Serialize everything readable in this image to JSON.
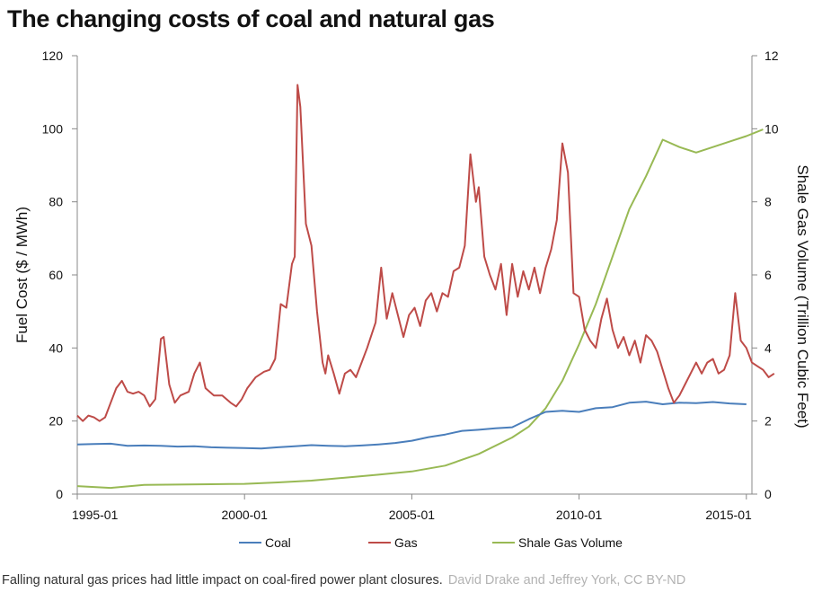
{
  "page": {
    "title": "The changing costs of coal and natural gas",
    "caption": "Falling natural gas prices had little impact on coal-fired power plant closures.",
    "credit": "David Drake and Jeffrey York, CC BY-ND"
  },
  "chart_data": {
    "type": "line",
    "title": "The changing costs of coal and natural gas",
    "x_range": [
      "1995-01",
      "2015-03"
    ],
    "x_tick_labels": [
      "1995-01",
      "2000-01",
      "2005-01",
      "2010-01",
      "2015-01"
    ],
    "y_left": {
      "label": "Fuel Cost ($ / MWh)",
      "range": [
        0,
        120
      ],
      "ticks": [
        0,
        20,
        40,
        60,
        80,
        100,
        120
      ]
    },
    "y_right": {
      "label": "Shale Gas Volume (Trillion Cubic Feet)",
      "range": [
        0,
        12
      ],
      "ticks": [
        0,
        2,
        4,
        6,
        8,
        10,
        12
      ]
    },
    "grid": false,
    "legend_position": "bottom",
    "colors": {
      "Coal": "#4a7ebb",
      "Gas": "#be4b48",
      "Shale Gas Volume": "#98b954"
    },
    "series": [
      {
        "name": "Coal",
        "axis": "left",
        "points": [
          [
            "1995-01",
            13.6
          ],
          [
            "1995-07",
            13.7
          ],
          [
            "1996-01",
            13.8
          ],
          [
            "1996-07",
            13.2
          ],
          [
            "1997-01",
            13.3
          ],
          [
            "1997-07",
            13.2
          ],
          [
            "1998-01",
            13.0
          ],
          [
            "1998-07",
            13.1
          ],
          [
            "1999-01",
            12.8
          ],
          [
            "1999-07",
            12.7
          ],
          [
            "2000-01",
            12.6
          ],
          [
            "2000-07",
            12.5
          ],
          [
            "2001-01",
            12.8
          ],
          [
            "2001-07",
            13.1
          ],
          [
            "2002-01",
            13.4
          ],
          [
            "2002-07",
            13.2
          ],
          [
            "2003-01",
            13.1
          ],
          [
            "2003-07",
            13.3
          ],
          [
            "2004-01",
            13.6
          ],
          [
            "2004-07",
            14.0
          ],
          [
            "2005-01",
            14.6
          ],
          [
            "2005-07",
            15.6
          ],
          [
            "2006-01",
            16.3
          ],
          [
            "2006-07",
            17.3
          ],
          [
            "2007-01",
            17.6
          ],
          [
            "2007-07",
            18.0
          ],
          [
            "2008-01",
            18.3
          ],
          [
            "2008-07",
            20.5
          ],
          [
            "2009-01",
            22.5
          ],
          [
            "2009-07",
            22.8
          ],
          [
            "2010-01",
            22.5
          ],
          [
            "2010-07",
            23.5
          ],
          [
            "2011-01",
            23.8
          ],
          [
            "2011-07",
            25.0
          ],
          [
            "2012-01",
            25.3
          ],
          [
            "2012-07",
            24.6
          ],
          [
            "2013-01",
            25.0
          ],
          [
            "2013-07",
            24.9
          ],
          [
            "2014-01",
            25.2
          ],
          [
            "2014-07",
            24.8
          ],
          [
            "2015-01",
            24.6
          ]
        ]
      },
      {
        "name": "Gas",
        "axis": "left",
        "points": [
          [
            "1995-01",
            21.5
          ],
          [
            "1995-03",
            20.0
          ],
          [
            "1995-05",
            21.5
          ],
          [
            "1995-07",
            21.0
          ],
          [
            "1995-09",
            20.0
          ],
          [
            "1995-11",
            21.0
          ],
          [
            "1996-01",
            25.0
          ],
          [
            "1996-03",
            29.0
          ],
          [
            "1996-05",
            31.0
          ],
          [
            "1996-07",
            28.0
          ],
          [
            "1996-09",
            27.5
          ],
          [
            "1996-11",
            28.0
          ],
          [
            "1997-01",
            27.0
          ],
          [
            "1997-03",
            24.0
          ],
          [
            "1997-05",
            26.0
          ],
          [
            "1997-07",
            42.5
          ],
          [
            "1997-08",
            43.0
          ],
          [
            "1997-10",
            30.0
          ],
          [
            "1997-12",
            25.0
          ],
          [
            "1998-02",
            27.0
          ],
          [
            "1998-05",
            28.0
          ],
          [
            "1998-07",
            33.0
          ],
          [
            "1998-09",
            36.0
          ],
          [
            "1998-11",
            29.0
          ],
          [
            "1999-02",
            27.0
          ],
          [
            "1999-05",
            27.0
          ],
          [
            "1999-08",
            25.0
          ],
          [
            "1999-10",
            24.0
          ],
          [
            "1999-12",
            26.0
          ],
          [
            "2000-02",
            29.0
          ],
          [
            "2000-05",
            32.0
          ],
          [
            "2000-08",
            33.5
          ],
          [
            "2000-10",
            34.0
          ],
          [
            "2000-12",
            37.0
          ],
          [
            "2001-02",
            52.0
          ],
          [
            "2001-04",
            51.0
          ],
          [
            "2001-06",
            63.0
          ],
          [
            "2001-07",
            65.0
          ],
          [
            "2001-08",
            112.0
          ],
          [
            "2001-09",
            106.0
          ],
          [
            "2001-11",
            74.0
          ],
          [
            "2002-01",
            68.0
          ],
          [
            "2002-03",
            50.0
          ],
          [
            "2002-05",
            36.0
          ],
          [
            "2002-06",
            33.0
          ],
          [
            "2002-07",
            38.0
          ],
          [
            "2002-09",
            33.0
          ],
          [
            "2002-11",
            27.5
          ],
          [
            "2003-01",
            33.0
          ],
          [
            "2003-03",
            34.0
          ],
          [
            "2003-05",
            32.0
          ],
          [
            "2003-07",
            36.0
          ],
          [
            "2003-09",
            40.0
          ],
          [
            "2003-12",
            47.0
          ],
          [
            "2004-02",
            62.0
          ],
          [
            "2004-04",
            48.0
          ],
          [
            "2004-06",
            55.0
          ],
          [
            "2004-08",
            49.0
          ],
          [
            "2004-10",
            43.0
          ],
          [
            "2004-12",
            49.0
          ],
          [
            "2005-02",
            51.0
          ],
          [
            "2005-04",
            46.0
          ],
          [
            "2005-06",
            53.0
          ],
          [
            "2005-08",
            55.0
          ],
          [
            "2005-10",
            50.0
          ],
          [
            "2005-12",
            55.0
          ],
          [
            "2006-02",
            54.0
          ],
          [
            "2006-04",
            61.0
          ],
          [
            "2006-06",
            62.0
          ],
          [
            "2006-08",
            68.0
          ],
          [
            "2006-10",
            93.0
          ],
          [
            "2006-12",
            80.0
          ],
          [
            "2007-01",
            84.0
          ],
          [
            "2007-03",
            65.0
          ],
          [
            "2007-05",
            60.0
          ],
          [
            "2007-07",
            56.0
          ],
          [
            "2007-09",
            63.0
          ],
          [
            "2007-11",
            49.0
          ],
          [
            "2008-01",
            63.0
          ],
          [
            "2008-03",
            54.0
          ],
          [
            "2008-05",
            61.0
          ],
          [
            "2008-07",
            56.0
          ],
          [
            "2008-09",
            62.0
          ],
          [
            "2008-11",
            55.0
          ],
          [
            "2009-01",
            62.0
          ],
          [
            "2009-03",
            67.0
          ],
          [
            "2009-05",
            75.0
          ],
          [
            "2009-07",
            96.0
          ],
          [
            "2009-09",
            88.0
          ],
          [
            "2009-11",
            55.0
          ],
          [
            "2010-01",
            54.0
          ],
          [
            "2010-03",
            45.0
          ],
          [
            "2010-05",
            42.0
          ],
          [
            "2010-07",
            40.0
          ],
          [
            "2010-09",
            48.0
          ],
          [
            "2010-11",
            53.5
          ],
          [
            "2011-01",
            45.0
          ],
          [
            "2011-03",
            40.0
          ],
          [
            "2011-05",
            43.0
          ],
          [
            "2011-07",
            38.0
          ],
          [
            "2011-09",
            42.0
          ],
          [
            "2011-11",
            36.0
          ],
          [
            "2012-01",
            43.5
          ],
          [
            "2012-03",
            42.0
          ],
          [
            "2012-05",
            39.0
          ],
          [
            "2012-07",
            34.0
          ],
          [
            "2012-09",
            29.0
          ],
          [
            "2012-11",
            25.0
          ],
          [
            "2013-01",
            27.0
          ],
          [
            "2013-03",
            30.0
          ],
          [
            "2013-05",
            33.0
          ],
          [
            "2013-07",
            36.0
          ],
          [
            "2013-09",
            33.0
          ],
          [
            "2013-11",
            36.0
          ],
          [
            "2014-01",
            37.0
          ],
          [
            "2014-03",
            33.0
          ],
          [
            "2014-05",
            34.0
          ],
          [
            "2014-07",
            38.0
          ],
          [
            "2014-09",
            55.0
          ],
          [
            "2014-11",
            42.0
          ],
          [
            "2015-01",
            40.0
          ],
          [
            "2015-03",
            36.0
          ],
          [
            "2015-05",
            35.0
          ],
          [
            "2015-07",
            34.0
          ],
          [
            "2015-09",
            32.0
          ],
          [
            "2015-11",
            33.0
          ]
        ]
      },
      {
        "name": "Shale Gas Volume",
        "axis": "right",
        "points": [
          [
            "1995-01",
            0.22
          ],
          [
            "1996-01",
            0.17
          ],
          [
            "1997-01",
            0.25
          ],
          [
            "1998-01",
            0.26
          ],
          [
            "1999-01",
            0.27
          ],
          [
            "2000-01",
            0.28
          ],
          [
            "2001-01",
            0.32
          ],
          [
            "2002-01",
            0.37
          ],
          [
            "2003-01",
            0.45
          ],
          [
            "2004-01",
            0.53
          ],
          [
            "2005-01",
            0.62
          ],
          [
            "2006-01",
            0.78
          ],
          [
            "2007-01",
            1.1
          ],
          [
            "2008-01",
            1.55
          ],
          [
            "2008-07",
            1.85
          ],
          [
            "2009-01",
            2.35
          ],
          [
            "2009-07",
            3.1
          ],
          [
            "2010-01",
            4.1
          ],
          [
            "2010-07",
            5.2
          ],
          [
            "2011-01",
            6.5
          ],
          [
            "2011-07",
            7.8
          ],
          [
            "2012-01",
            8.7
          ],
          [
            "2012-07",
            9.7
          ],
          [
            "2013-01",
            9.5
          ],
          [
            "2013-07",
            9.35
          ],
          [
            "2014-01",
            9.5
          ],
          [
            "2014-07",
            9.65
          ],
          [
            "2015-01",
            9.8
          ],
          [
            "2015-07",
            9.98
          ]
        ]
      }
    ]
  }
}
